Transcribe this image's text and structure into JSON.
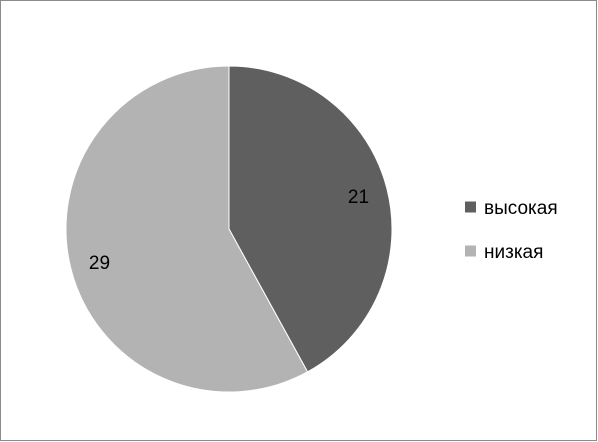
{
  "chart_data": {
    "type": "pie",
    "title": "",
    "categories": [
      "высокая",
      "низкая"
    ],
    "values": [
      21,
      29
    ],
    "data_labels": [
      "21",
      "29"
    ],
    "colors": [
      "#5f5f5f",
      "#b3b3b3"
    ],
    "start_angle_deg": 0,
    "direction": "clockwise",
    "legend": {
      "placement": "right",
      "entries": [
        "высокая",
        "низкая"
      ]
    }
  }
}
